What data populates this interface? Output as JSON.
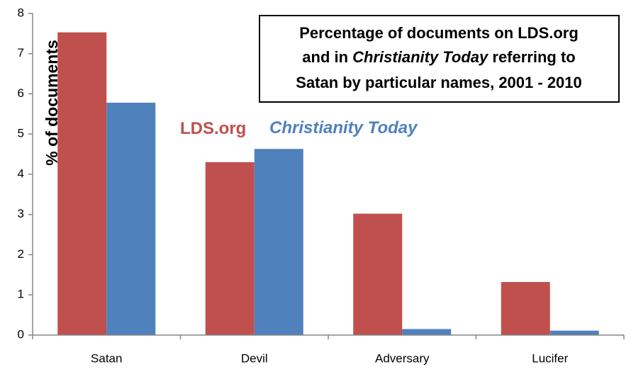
{
  "chart_data": {
    "type": "bar",
    "title_lines": [
      [
        "Percentage of documents on LDS.org"
      ],
      [
        "and in ",
        "Christianity Today",
        " referring to"
      ],
      [
        "Satan by particular names, 2001 - 2010"
      ]
    ],
    "ylabel": "% of documents",
    "xlabel": "",
    "ylim": [
      0,
      8
    ],
    "yticks": [
      "0",
      "1",
      "2",
      "3",
      "4",
      "5",
      "6",
      "7",
      "8"
    ],
    "categories": [
      "Satan",
      "Devil",
      "Adversary",
      "Lucifer"
    ],
    "series": [
      {
        "name": "LDS.org",
        "color": "#C0504D",
        "values": [
          7.53,
          4.3,
          3.02,
          1.32
        ]
      },
      {
        "name": "Christianity Today",
        "color": "#4F81BD",
        "values": [
          5.78,
          4.63,
          0.15,
          0.11
        ]
      }
    ],
    "grid": false,
    "legend": "inside plot, upper center"
  }
}
